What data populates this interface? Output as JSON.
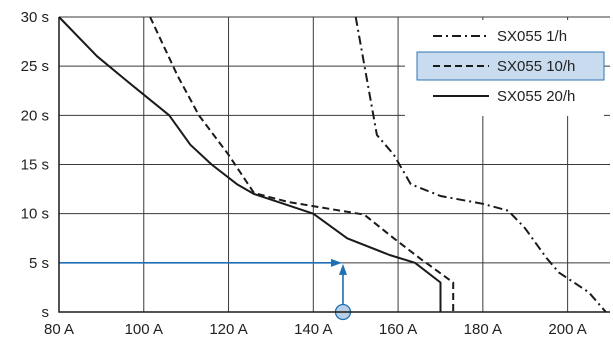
{
  "chart_data": {
    "type": "line",
    "xlim": [
      80,
      210
    ],
    "ylim": [
      0,
      30
    ],
    "x_ticks": [
      {
        "value": 80,
        "label": "80 A"
      },
      {
        "value": 100,
        "label": "100 A"
      },
      {
        "value": 120,
        "label": "120 A"
      },
      {
        "value": 140,
        "label": "140 A"
      },
      {
        "value": 160,
        "label": "160 A"
      },
      {
        "value": 180,
        "label": "180 A"
      },
      {
        "value": 200,
        "label": "200 A"
      }
    ],
    "y_ticks": [
      {
        "value": 0,
        "label": "s"
      },
      {
        "value": 5,
        "label": "5 s"
      },
      {
        "value": 10,
        "label": "10 s"
      },
      {
        "value": 15,
        "label": "15 s"
      },
      {
        "value": 20,
        "label": "20 s"
      },
      {
        "value": 25,
        "label": "25 s"
      },
      {
        "value": 30,
        "label": "30 s"
      }
    ],
    "grid": true,
    "legend_position": "top-right",
    "series": [
      {
        "name": "SX055 1/h",
        "style": "dashdot",
        "color": "#1a1a1a",
        "points": [
          [
            150,
            30
          ],
          [
            152.5,
            24
          ],
          [
            155,
            18
          ],
          [
            159,
            16
          ],
          [
            163,
            13
          ],
          [
            170,
            11.8
          ],
          [
            180,
            11
          ],
          [
            186,
            10.3
          ],
          [
            190,
            8.5
          ],
          [
            195,
            5.5
          ],
          [
            198,
            4
          ],
          [
            205,
            2
          ],
          [
            209,
            0
          ]
        ]
      },
      {
        "name": "SX055 10/h",
        "style": "dashed",
        "color": "#1a1a1a",
        "points": [
          [
            101.5,
            30
          ],
          [
            108,
            24
          ],
          [
            113,
            20
          ],
          [
            120,
            16
          ],
          [
            126,
            12.1
          ],
          [
            134,
            11.2
          ],
          [
            145,
            10.4
          ],
          [
            152,
            9.9
          ],
          [
            159,
            7.5
          ],
          [
            165,
            5.5
          ],
          [
            173,
            3
          ],
          [
            173,
            0
          ]
        ]
      },
      {
        "name": "SX055 20/h",
        "style": "solid",
        "color": "#1a1a1a",
        "points": [
          [
            80,
            30
          ],
          [
            89,
            26
          ],
          [
            96,
            23.5
          ],
          [
            106,
            20
          ],
          [
            111,
            17
          ],
          [
            116,
            15
          ],
          [
            122,
            13
          ],
          [
            126,
            12
          ],
          [
            140,
            10
          ],
          [
            148,
            7.5
          ],
          [
            158,
            5.8
          ],
          [
            164,
            5
          ],
          [
            170,
            3
          ],
          [
            170,
            0
          ]
        ]
      }
    ],
    "legend_highlight": "SX055 10/h",
    "annotation": {
      "point_x": 147,
      "point_y": 0,
      "target_y": 5,
      "color": "#1e6fb4",
      "marker_fill": "#b9cfe6"
    }
  }
}
